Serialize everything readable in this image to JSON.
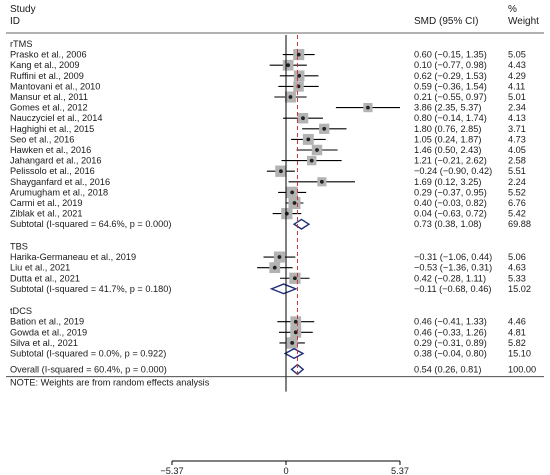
{
  "chart_data": {
    "type": "forest",
    "headers": {
      "study": "Study",
      "id": "ID",
      "effect": "SMD (95% CI)",
      "weight_pct": "%",
      "weight": "Weight"
    },
    "axis": {
      "xlim": [
        -5.37,
        5.37
      ],
      "ticks": [
        {
          "value": -5.37,
          "label": "−5.37"
        },
        {
          "value": 0,
          "label": "0"
        },
        {
          "value": 5.37,
          "label": "5.37"
        }
      ],
      "overall_line": 0.54
    },
    "groups": [
      {
        "name": "rTMS",
        "studies": [
          {
            "label": "Prasko et al., 2006",
            "smd": 0.6,
            "lo": -0.15,
            "hi": 1.35,
            "ci": "0.60 (−0.15, 1.35)",
            "weight": "5.05"
          },
          {
            "label": "Kang et al., 2009",
            "smd": 0.1,
            "lo": -0.77,
            "hi": 0.98,
            "ci": "0.10 (−0.77, 0.98)",
            "weight": "4.43"
          },
          {
            "label": "Ruffini et al., 2009",
            "smd": 0.62,
            "lo": -0.29,
            "hi": 1.53,
            "ci": "0.62 (−0.29, 1.53)",
            "weight": "4.29"
          },
          {
            "label": "Mantovani et al., 2010",
            "smd": 0.59,
            "lo": -0.36,
            "hi": 1.54,
            "ci": "0.59 (−0.36, 1.54)",
            "weight": "4.11"
          },
          {
            "label": "Mansur et al., 2011",
            "smd": 0.21,
            "lo": -0.55,
            "hi": 0.97,
            "ci": "0.21 (−0.55, 0.97)",
            "weight": "5.01"
          },
          {
            "label": "Gomes et al., 2012",
            "smd": 3.86,
            "lo": 2.35,
            "hi": 5.37,
            "ci": "3.86 (2.35, 5.37)",
            "weight": "2.34"
          },
          {
            "label": "Nauczyciel et al., 2014",
            "smd": 0.8,
            "lo": -0.14,
            "hi": 1.74,
            "ci": "0.80 (−0.14, 1.74)",
            "weight": "4.13"
          },
          {
            "label": "Haghighi et al., 2015",
            "smd": 1.8,
            "lo": 0.76,
            "hi": 2.85,
            "ci": "1.80 (0.76, 2.85)",
            "weight": "3.71"
          },
          {
            "label": "Seo et al., 2016",
            "smd": 1.05,
            "lo": 0.24,
            "hi": 1.87,
            "ci": "1.05 (0.24, 1.87)",
            "weight": "4.73"
          },
          {
            "label": "Hawken et al., 2016",
            "smd": 1.46,
            "lo": 0.5,
            "hi": 2.43,
            "ci": "1.46 (0.50, 2.43)",
            "weight": "4.05"
          },
          {
            "label": "Jahangard et al., 2016",
            "smd": 1.21,
            "lo": -0.21,
            "hi": 2.62,
            "ci": "1.21 (−0.21, 2.62)",
            "weight": "2.58"
          },
          {
            "label": "Pelissolo et al., 2016",
            "smd": -0.24,
            "lo": -0.9,
            "hi": 0.42,
            "ci": "−0.24 (−0.90, 0.42)",
            "weight": "5.51"
          },
          {
            "label": "Shayganfard et al., 2016",
            "smd": 1.69,
            "lo": 0.12,
            "hi": 3.25,
            "ci": "1.69 (0.12, 3.25)",
            "weight": "2.24"
          },
          {
            "label": "Arumugham et al., 2018",
            "smd": 0.29,
            "lo": -0.37,
            "hi": 0.95,
            "ci": "0.29 (−0.37, 0.95)",
            "weight": "5.52"
          },
          {
            "label": "Carmi et al., 2019",
            "smd": 0.4,
            "lo": -0.03,
            "hi": 0.82,
            "ci": "0.40 (−0.03, 0.82)",
            "weight": "6.76"
          },
          {
            "label": "Ziblak et al., 2021",
            "smd": 0.04,
            "lo": -0.63,
            "hi": 0.72,
            "ci": "0.04 (−0.63, 0.72)",
            "weight": "5.42"
          }
        ],
        "subtotal": {
          "label": "Subtotal  (I-squared = 64.6%, p = 0.000)",
          "smd": 0.73,
          "lo": 0.38,
          "hi": 1.08,
          "ci": "0.73 (0.38, 1.08)",
          "weight": "69.88"
        }
      },
      {
        "name": "TBS",
        "studies": [
          {
            "label": "Harika-Germaneau et al., 2019",
            "smd": -0.31,
            "lo": -1.06,
            "hi": 0.44,
            "ci": "−0.31 (−1.06, 0.44)",
            "weight": "5.06"
          },
          {
            "label": "Liu et al., 2021",
            "smd": -0.53,
            "lo": -1.36,
            "hi": 0.31,
            "ci": "−0.53 (−1.36, 0.31)",
            "weight": "4.63"
          },
          {
            "label": "Dutta et al., 2021",
            "smd": 0.42,
            "lo": -0.28,
            "hi": 1.11,
            "ci": "0.42 (−0.28, 1.11)",
            "weight": "5.33"
          }
        ],
        "subtotal": {
          "label": "Subtotal  (I-squared = 41.7%, p = 0.180)",
          "smd": -0.11,
          "lo": -0.68,
          "hi": 0.46,
          "ci": "−0.11 (−0.68, 0.46)",
          "weight": "15.02"
        }
      },
      {
        "name": "tDCS",
        "studies": [
          {
            "label": "Bation et al., 2019",
            "smd": 0.46,
            "lo": -0.41,
            "hi": 1.33,
            "ci": "0.46 (−0.41, 1.33)",
            "weight": "4.46"
          },
          {
            "label": "Gowda et al., 2019",
            "smd": 0.46,
            "lo": -0.33,
            "hi": 1.26,
            "ci": "0.46 (−0.33, 1.26)",
            "weight": "4.81"
          },
          {
            "label": "Silva et al., 2021",
            "smd": 0.29,
            "lo": -0.31,
            "hi": 0.89,
            "ci": "0.29 (−0.31, 0.89)",
            "weight": "5.82"
          }
        ],
        "subtotal": {
          "label": "Subtotal  (I-squared = 0.0%, p = 0.922)",
          "smd": 0.38,
          "lo": -0.04,
          "hi": 0.8,
          "ci": "0.38 (−0.04, 0.80)",
          "weight": "15.10"
        }
      }
    ],
    "overall": {
      "label": "Overall  (I-squared = 60.4%, p = 0.000)",
      "smd": 0.54,
      "lo": 0.26,
      "hi": 0.81,
      "ci": "0.54 (0.26, 0.81)",
      "weight": "100.00"
    },
    "note": "NOTE: Weights are from random effects analysis",
    "colors": {
      "diamond": "#1f2f7a",
      "overall_line": "#c0392b",
      "box": "#b3b3b3",
      "text": "#1a1a1a"
    }
  }
}
